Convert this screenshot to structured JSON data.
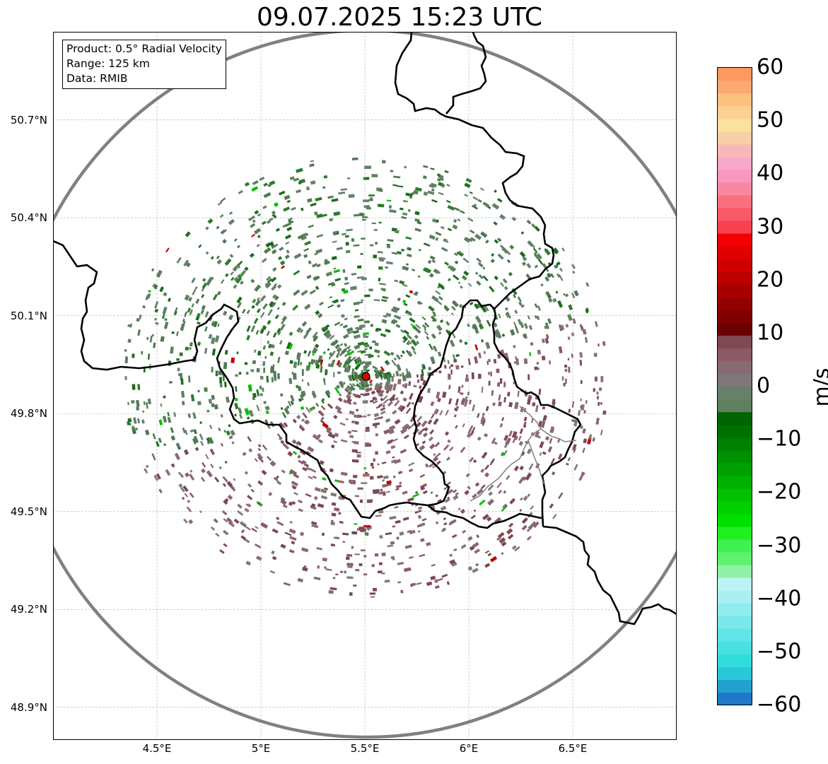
{
  "title": "09.07.2025 15:23 UTC",
  "info": {
    "product": "Product: 0.5° Radial Velocity",
    "range": "Range: 125 km",
    "data": "Data: RMIB"
  },
  "map": {
    "lon_range": [
      4.0,
      7.0
    ],
    "lat_range": [
      48.8,
      50.97
    ],
    "radar_site": {
      "lon": 5.505,
      "lat": 49.914
    },
    "radar_range_km": 125,
    "lat_ticks": [
      {
        "value": 50.7,
        "label": "50.7°N"
      },
      {
        "value": 50.4,
        "label": "50.4°N"
      },
      {
        "value": 50.1,
        "label": "50.1°N"
      },
      {
        "value": 49.8,
        "label": "49.8°N"
      },
      {
        "value": 49.5,
        "label": "49.5°N"
      },
      {
        "value": 49.2,
        "label": "49.2°N"
      },
      {
        "value": 48.9,
        "label": "48.9°N"
      }
    ],
    "lon_ticks": [
      {
        "value": 4.5,
        "label": "4.5°E"
      },
      {
        "value": 5.0,
        "label": "5°E"
      },
      {
        "value": 5.5,
        "label": "5.5°E"
      },
      {
        "value": 6.0,
        "label": "6°E"
      },
      {
        "value": 6.5,
        "label": "6.5°E"
      }
    ],
    "range_ring_color": "#808080",
    "border_color": "#000000",
    "grid_color": "#b0b0b0"
  },
  "colorbar": {
    "label": "m/s",
    "vmin": -60,
    "vmax": 60,
    "ticks": [
      "60",
      "50",
      "40",
      "30",
      "20",
      "10",
      "0",
      "−10",
      "−20",
      "−30",
      "−40",
      "−50",
      "−60"
    ],
    "tick_values": [
      60,
      50,
      40,
      30,
      20,
      10,
      0,
      -10,
      -20,
      -30,
      -40,
      -50,
      -60
    ],
    "colors": [
      "#1f78c8",
      "#24a0d0",
      "#28c8d8",
      "#30dcdc",
      "#48e0e0",
      "#60e4e4",
      "#78e8e8",
      "#90ecec",
      "#a8f0f0",
      "#bcf4f4",
      "#90f0a8",
      "#60f070",
      "#40f050",
      "#20f020",
      "#00e000",
      "#00d000",
      "#00c000",
      "#00b000",
      "#00a000",
      "#009000",
      "#008000",
      "#007000",
      "#006400",
      "#5e8060",
      "#66806a",
      "#807878",
      "#886a74",
      "#8a5a66",
      "#804850",
      "#6a0000",
      "#800000",
      "#940000",
      "#a80000",
      "#bc0000",
      "#d00000",
      "#e00000",
      "#f00000",
      "#f84050",
      "#f85868",
      "#f87080",
      "#f888a0",
      "#f898c0",
      "#f8a8c8",
      "#f8b8b8",
      "#f8d0a8",
      "#fce0a0",
      "#fcd090",
      "#fcc080",
      "#fca870",
      "#fc9860"
    ]
  }
}
